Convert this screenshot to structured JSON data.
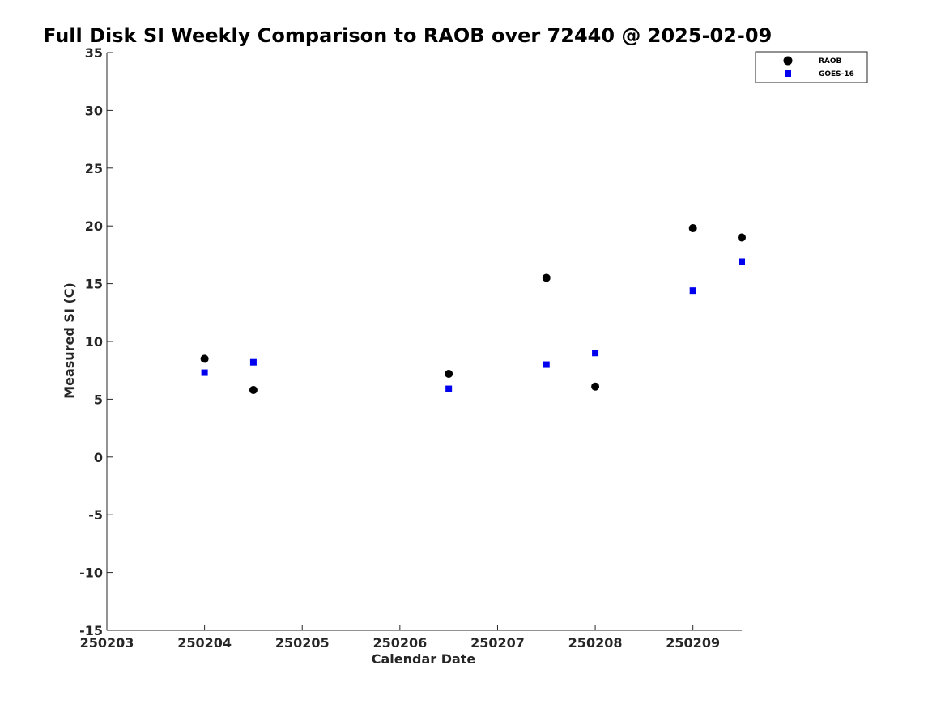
{
  "chart_data": {
    "type": "scatter",
    "title": "Full Disk SI Weekly Comparison to RAOB over 72440 @ 2025-02-09",
    "xlabel": "Calendar Date",
    "ylabel": "Measured SI (C)",
    "xlim": [
      250203,
      250209.5
    ],
    "ylim": [
      -15,
      35
    ],
    "x_ticks": [
      250203,
      250204,
      250205,
      250206,
      250207,
      250208,
      250209
    ],
    "x_tick_labels": [
      "250203",
      "250204",
      "250205",
      "250206",
      "250207",
      "250208",
      "250209"
    ],
    "y_ticks": [
      35,
      30,
      25,
      20,
      15,
      10,
      5,
      0,
      -5,
      -10,
      -15
    ],
    "y_tick_labels": [
      "35",
      "30",
      "25",
      "20",
      "15",
      "10",
      "5",
      "0",
      "-5",
      "-10",
      "-15"
    ],
    "grid": false,
    "legend_position": "top-right",
    "series": [
      {
        "name": "RAOB",
        "marker": "circle",
        "color": "#000000",
        "x": [
          250204,
          250204.5,
          250206.5,
          250207.5,
          250208,
          250209,
          250209.5
        ],
        "y": [
          8.5,
          5.8,
          7.2,
          15.5,
          6.1,
          19.8,
          19.0
        ]
      },
      {
        "name": "GOES-16",
        "marker": "square",
        "color": "#0000ee",
        "x": [
          250204,
          250204.5,
          250206.5,
          250207.5,
          250208,
          250209,
          250209.5
        ],
        "y": [
          7.3,
          8.2,
          5.9,
          8.0,
          9.0,
          14.4,
          16.9
        ]
      }
    ]
  }
}
